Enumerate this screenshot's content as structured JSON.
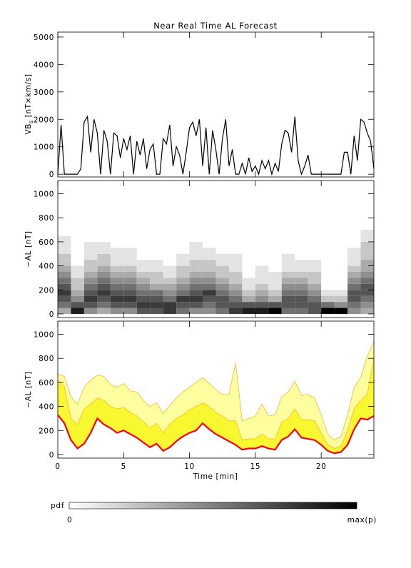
{
  "chart_data": [
    {
      "type": "line",
      "title": "Near Real Time AL Forecast",
      "ylabel": [
        "VB",
        "s",
        " [nT×km/s]"
      ],
      "x": [
        0,
        0.25,
        0.5,
        0.75,
        1,
        1.25,
        1.5,
        1.75,
        2,
        2.25,
        2.5,
        2.75,
        3,
        3.25,
        3.5,
        3.75,
        4,
        4.25,
        4.5,
        4.75,
        5,
        5.25,
        5.5,
        5.75,
        6,
        6.25,
        6.5,
        6.75,
        7,
        7.25,
        7.5,
        7.75,
        8,
        8.25,
        8.5,
        8.75,
        9,
        9.25,
        9.5,
        9.75,
        10,
        10.25,
        10.5,
        10.75,
        11,
        11.25,
        11.5,
        11.75,
        12,
        12.25,
        12.5,
        12.75,
        13,
        13.25,
        13.5,
        13.75,
        14,
        14.25,
        14.5,
        14.75,
        15,
        15.25,
        15.5,
        15.75,
        16,
        16.25,
        16.5,
        16.75,
        17,
        17.25,
        17.5,
        17.75,
        18,
        18.25,
        18.5,
        18.75,
        19,
        19.25,
        19.5,
        19.75,
        20,
        20.25,
        20.5,
        20.75,
        21,
        21.25,
        21.5,
        21.75,
        22,
        22.25,
        22.5,
        22.75,
        23,
        23.25,
        23.5,
        23.75,
        24
      ],
      "values": [
        0,
        1800,
        0,
        0,
        0,
        0,
        0,
        200,
        1900,
        2100,
        800,
        2000,
        1500,
        0,
        1600,
        1200,
        0,
        1500,
        1400,
        600,
        1300,
        900,
        1400,
        0,
        1200,
        700,
        1300,
        200,
        900,
        1100,
        0,
        0,
        1300,
        1100,
        1800,
        300,
        1000,
        700,
        0,
        800,
        1700,
        1900,
        1400,
        2000,
        300,
        1700,
        0,
        1600,
        900,
        0,
        1300,
        2000,
        300,
        900,
        0,
        0,
        400,
        0,
        600,
        100,
        300,
        0,
        500,
        200,
        500,
        0,
        400,
        100,
        1100,
        1600,
        1500,
        800,
        2100,
        500,
        0,
        300,
        700,
        0,
        0,
        0,
        0,
        0,
        0,
        0,
        0,
        0,
        0,
        800,
        800,
        0,
        1400,
        500,
        2000,
        1900,
        1500,
        1200,
        200
      ],
      "color": "#000000",
      "xlim": [
        0,
        24
      ],
      "xticks": [
        0,
        5,
        10,
        15,
        20
      ],
      "ylim": [
        -100,
        5180
      ],
      "yticks": [
        0,
        1000,
        2000,
        3000,
        4000,
        5000
      ]
    },
    {
      "type": "heatmap",
      "ylabel": "−AL [nT]",
      "xbins": [
        0,
        1,
        2,
        3,
        4,
        5,
        6,
        7,
        8,
        9,
        10,
        11,
        12,
        13,
        14,
        15,
        16,
        17,
        18,
        19,
        20,
        21,
        22,
        23,
        24
      ],
      "ybins": [
        0,
        50,
        100,
        150,
        200,
        250,
        300,
        350,
        400,
        450,
        500,
        550,
        600,
        650,
        700
      ],
      "z": [
        [
          3,
          5,
          6,
          7,
          6,
          5,
          4,
          3,
          2,
          2,
          1,
          1,
          1,
          0
        ],
        [
          8,
          6,
          4,
          3,
          2,
          2,
          1,
          1,
          0,
          0,
          0,
          0,
          0,
          0
        ],
        [
          4,
          6,
          7,
          6,
          5,
          4,
          3,
          2,
          2,
          1,
          1,
          1,
          0,
          0
        ],
        [
          3,
          5,
          6,
          7,
          6,
          5,
          4,
          3,
          2,
          2,
          1,
          1,
          0,
          0
        ],
        [
          4,
          6,
          7,
          6,
          5,
          4,
          3,
          2,
          1,
          1,
          1,
          0,
          0,
          0
        ],
        [
          4,
          6,
          7,
          6,
          5,
          4,
          3,
          2,
          1,
          1,
          1,
          0,
          0,
          0
        ],
        [
          6,
          7,
          6,
          5,
          4,
          3,
          2,
          1,
          1,
          0,
          0,
          0,
          0,
          0
        ],
        [
          6,
          7,
          6,
          5,
          3,
          2,
          2,
          1,
          1,
          0,
          0,
          0,
          0,
          0
        ],
        [
          7,
          7,
          5,
          4,
          3,
          2,
          1,
          1,
          0,
          0,
          0,
          0,
          0,
          0
        ],
        [
          5,
          6,
          7,
          5,
          4,
          3,
          2,
          2,
          1,
          1,
          0,
          0,
          0,
          0
        ],
        [
          4,
          6,
          7,
          6,
          5,
          4,
          3,
          2,
          2,
          1,
          1,
          1,
          0,
          0
        ],
        [
          4,
          5,
          6,
          7,
          5,
          4,
          3,
          2,
          2,
          1,
          1,
          0,
          0,
          0
        ],
        [
          5,
          6,
          6,
          5,
          4,
          3,
          2,
          2,
          1,
          1,
          0,
          0,
          0,
          0
        ],
        [
          7,
          6,
          5,
          4,
          3,
          2,
          2,
          1,
          1,
          1,
          0,
          0,
          0,
          0
        ],
        [
          8,
          6,
          3,
          2,
          1,
          1,
          0,
          0,
          0,
          0,
          0,
          0,
          0,
          0
        ],
        [
          8,
          6,
          4,
          3,
          2,
          1,
          1,
          1,
          0,
          0,
          0,
          0,
          0,
          0
        ],
        [
          9,
          6,
          3,
          2,
          1,
          1,
          1,
          0,
          0,
          0,
          0,
          0,
          0,
          0
        ],
        [
          5,
          6,
          6,
          5,
          4,
          3,
          2,
          1,
          1,
          1,
          0,
          0,
          0,
          0
        ],
        [
          5,
          6,
          6,
          5,
          4,
          3,
          2,
          1,
          1,
          0,
          0,
          0,
          0,
          0
        ],
        [
          6,
          6,
          5,
          4,
          3,
          2,
          2,
          1,
          1,
          0,
          0,
          0,
          0,
          0
        ],
        [
          9,
          5,
          2,
          1,
          0,
          0,
          0,
          0,
          0,
          0,
          0,
          0,
          0,
          0
        ],
        [
          9,
          4,
          2,
          1,
          0,
          0,
          0,
          0,
          0,
          0,
          0,
          0,
          0,
          0
        ],
        [
          4,
          5,
          6,
          6,
          5,
          4,
          3,
          2,
          1,
          1,
          1,
          0,
          0,
          0
        ],
        [
          3,
          4,
          5,
          6,
          6,
          5,
          4,
          3,
          3,
          2,
          2,
          2,
          1,
          1
        ]
      ],
      "zlim": [
        0,
        9
      ],
      "colorbar": {
        "label": "pdf",
        "min_label": "0",
        "max_label": "max(p)"
      },
      "xlim": [
        0,
        24
      ],
      "xticks": [
        0,
        5,
        10,
        15,
        20
      ],
      "ylim": [
        -30,
        1110
      ],
      "yticks": [
        0,
        200,
        400,
        600,
        800,
        1000
      ]
    },
    {
      "type": "band",
      "ylabel": "−AL [nT]",
      "xlabel": "Time [min]",
      "x": [
        0,
        0.5,
        1,
        1.5,
        2,
        2.5,
        3,
        3.5,
        4,
        4.5,
        5,
        5.5,
        6,
        6.5,
        7,
        7.5,
        8,
        8.5,
        9,
        9.5,
        10,
        10.5,
        11,
        11.5,
        12,
        12.5,
        13,
        13.5,
        14,
        14.5,
        15,
        15.5,
        16,
        16.5,
        17,
        17.5,
        18,
        18.5,
        19,
        19.5,
        20,
        20.5,
        21,
        21.5,
        22,
        22.5,
        23,
        23.5,
        24
      ],
      "bands": [
        {
          "color": "#ffffa0",
          "edge": "#ffb040",
          "values": [
            670,
            650,
            480,
            420,
            560,
            620,
            660,
            650,
            580,
            560,
            590,
            530,
            520,
            450,
            400,
            430,
            340,
            410,
            470,
            520,
            560,
            600,
            640,
            590,
            540,
            500,
            500,
            760,
            280,
            300,
            320,
            420,
            320,
            330,
            480,
            520,
            610,
            490,
            500,
            470,
            330,
            170,
            120,
            150,
            330,
            560,
            640,
            820,
            940
          ]
        },
        {
          "color": "#f8f830",
          "edge": "#ffb040",
          "values": [
            620,
            560,
            300,
            250,
            380,
            420,
            470,
            450,
            400,
            380,
            390,
            350,
            320,
            270,
            220,
            260,
            180,
            250,
            300,
            330,
            370,
            400,
            430,
            400,
            350,
            320,
            280,
            280,
            120,
            130,
            130,
            170,
            130,
            130,
            270,
            300,
            380,
            290,
            290,
            280,
            180,
            80,
            50,
            70,
            200,
            380,
            450,
            500,
            800
          ]
        }
      ],
      "series": [
        {
          "color": "#ff0000",
          "values": [
            330,
            260,
            120,
            50,
            90,
            180,
            300,
            250,
            220,
            180,
            200,
            170,
            140,
            100,
            60,
            90,
            30,
            60,
            110,
            150,
            180,
            200,
            260,
            210,
            170,
            140,
            110,
            80,
            40,
            50,
            50,
            70,
            50,
            40,
            120,
            150,
            210,
            140,
            130,
            120,
            80,
            30,
            10,
            20,
            80,
            210,
            300,
            290,
            320
          ]
        }
      ],
      "xlim": [
        0,
        24
      ],
      "xticks": [
        0,
        5,
        10,
        15,
        20
      ],
      "ylim": [
        -30,
        1110
      ],
      "yticks": [
        0,
        200,
        400,
        600,
        800,
        1000
      ]
    }
  ]
}
